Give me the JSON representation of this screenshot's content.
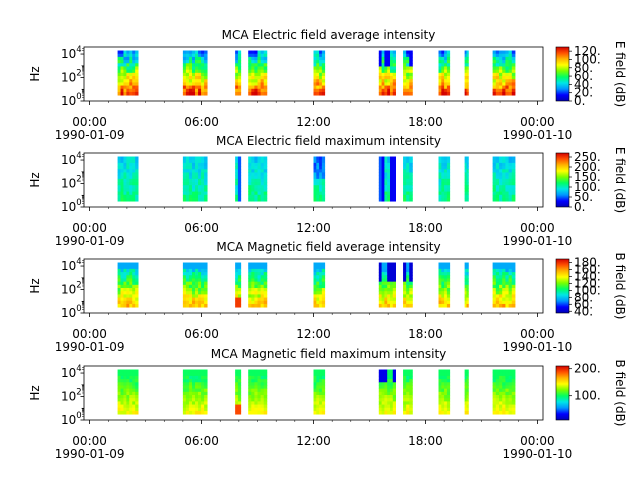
{
  "figure": {
    "date_start": "1990-01-09",
    "date_end": "1990-01-10"
  },
  "colormap": [
    "#0000b4",
    "#0000ff",
    "#0096ff",
    "#00e6e6",
    "#00ff64",
    "#78ff00",
    "#ffff00",
    "#ffb400",
    "#ff5000",
    "#d20000"
  ],
  "chart_data": [
    {
      "type": "heatmap",
      "title": "MCA  Electric field average intensity",
      "ylabel": "Hz",
      "y_ticks": [
        {
          "base": "10",
          "exp": "0"
        },
        {
          "base": "10",
          "exp": "2"
        },
        {
          "base": "10",
          "exp": "4"
        }
      ],
      "ylim_log10": [
        0,
        4.6
      ],
      "x_ticks": [
        "00:00",
        "06:00",
        "12:00",
        "18:00",
        "00:00"
      ],
      "x_ticks_hours": [
        0,
        6,
        12,
        18,
        24
      ],
      "xlim_hours": [
        -0.3,
        24.3
      ],
      "colorbar_label": "E field (dB)",
      "colorbar_ticks": [
        "0.",
        "20.",
        "40.",
        "60.",
        "80.",
        "100.",
        "120."
      ],
      "colorbar_range": [
        0,
        130
      ],
      "segments_hours": [
        [
          1.5,
          2.6
        ],
        [
          5.0,
          6.3
        ],
        [
          7.8,
          8.1
        ],
        [
          8.5,
          9.5
        ],
        [
          12.0,
          12.6
        ],
        [
          15.5,
          16.4
        ],
        [
          16.8,
          17.3
        ],
        [
          18.7,
          19.3
        ],
        [
          20.1,
          20.3
        ],
        [
          21.6,
          22.8
        ]
      ],
      "mode": "e_avg"
    },
    {
      "type": "heatmap",
      "title": "MCA  Electric field maximum intensity",
      "ylabel": "Hz",
      "y_ticks": [
        {
          "base": "10",
          "exp": "0"
        },
        {
          "base": "10",
          "exp": "2"
        },
        {
          "base": "10",
          "exp": "4"
        }
      ],
      "ylim_log10": [
        0,
        4.6
      ],
      "x_ticks": [
        "00:00",
        "06:00",
        "12:00",
        "18:00",
        "00:00"
      ],
      "x_ticks_hours": [
        0,
        6,
        12,
        18,
        24
      ],
      "xlim_hours": [
        -0.3,
        24.3
      ],
      "colorbar_label": "E field (dB)",
      "colorbar_ticks": [
        "0.",
        "50.",
        "100.",
        "150.",
        "200.",
        "250."
      ],
      "colorbar_range": [
        0,
        270
      ],
      "segments_hours": [
        [
          1.5,
          2.6
        ],
        [
          5.0,
          6.3
        ],
        [
          7.8,
          8.1
        ],
        [
          8.5,
          9.5
        ],
        [
          12.0,
          12.6
        ],
        [
          15.5,
          16.4
        ],
        [
          16.8,
          17.3
        ],
        [
          18.7,
          19.3
        ],
        [
          20.1,
          20.3
        ],
        [
          21.6,
          22.8
        ]
      ],
      "mode": "e_max"
    },
    {
      "type": "heatmap",
      "title": "MCA  Magnetic field average intensity",
      "ylabel": "Hz",
      "y_ticks": [
        {
          "base": "10",
          "exp": "0"
        },
        {
          "base": "10",
          "exp": "2"
        },
        {
          "base": "10",
          "exp": "4"
        }
      ],
      "ylim_log10": [
        0,
        4.6
      ],
      "x_ticks": [
        "00:00",
        "06:00",
        "12:00",
        "18:00",
        "00:00"
      ],
      "x_ticks_hours": [
        0,
        6,
        12,
        18,
        24
      ],
      "xlim_hours": [
        -0.3,
        24.3
      ],
      "colorbar_label": "B field (dB)",
      "colorbar_ticks": [
        "40.",
        "60.",
        "80.",
        "100.",
        "120.",
        "140.",
        "160.",
        "180."
      ],
      "colorbar_range": [
        35,
        190
      ],
      "segments_hours": [
        [
          1.5,
          2.6
        ],
        [
          5.0,
          6.3
        ],
        [
          7.8,
          8.1
        ],
        [
          8.5,
          9.5
        ],
        [
          12.0,
          12.6
        ],
        [
          15.5,
          16.4
        ],
        [
          16.8,
          17.3
        ],
        [
          18.7,
          19.3
        ],
        [
          20.1,
          20.3
        ],
        [
          21.6,
          22.8
        ]
      ],
      "mode": "b_avg"
    },
    {
      "type": "heatmap",
      "title": "MCA  Magnetic field maximum intensity",
      "ylabel": "Hz",
      "y_ticks": [
        {
          "base": "10",
          "exp": "0"
        },
        {
          "base": "10",
          "exp": "2"
        },
        {
          "base": "10",
          "exp": "4"
        }
      ],
      "ylim_log10": [
        0,
        4.6
      ],
      "x_ticks": [
        "00:00",
        "06:00",
        "12:00",
        "18:00",
        "00:00"
      ],
      "x_ticks_hours": [
        0,
        6,
        12,
        18,
        24
      ],
      "xlim_hours": [
        -0.3,
        24.3
      ],
      "colorbar_label": "B field (dB)",
      "colorbar_ticks": [
        "100.",
        "200."
      ],
      "colorbar_range": [
        10,
        210
      ],
      "segments_hours": [
        [
          1.5,
          2.6
        ],
        [
          5.0,
          6.3
        ],
        [
          7.8,
          8.1
        ],
        [
          8.5,
          9.5
        ],
        [
          12.0,
          12.6
        ],
        [
          15.5,
          16.4
        ],
        [
          16.8,
          17.3
        ],
        [
          18.7,
          19.3
        ],
        [
          20.1,
          20.3
        ],
        [
          21.6,
          22.8
        ]
      ],
      "mode": "b_max"
    }
  ]
}
